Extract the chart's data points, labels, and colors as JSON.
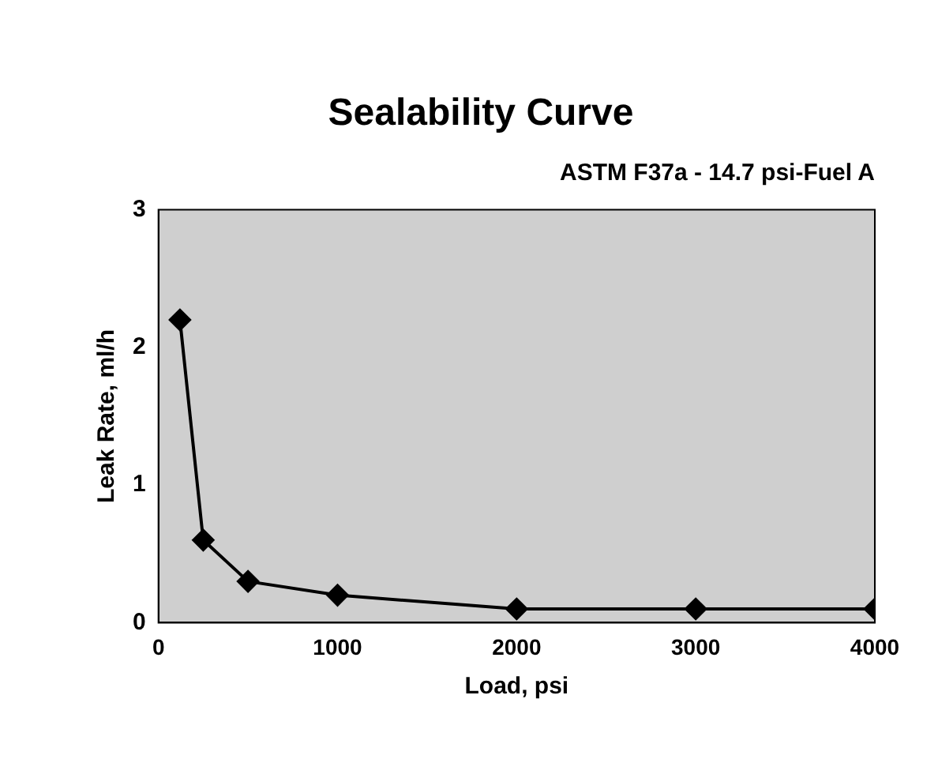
{
  "chart_data": {
    "type": "line",
    "title": "Sealability Curve",
    "subtitle": "ASTM F37a - 14.7 psi-Fuel A",
    "xlabel": "Load, psi",
    "ylabel": "Leak Rate, ml/h",
    "x": [
      120,
      250,
      500,
      1000,
      2000,
      3000,
      4000
    ],
    "series": [
      {
        "color": "#000000",
        "values": [
          2.2,
          0.6,
          0.3,
          0.2,
          0.1,
          0.1,
          0.1
        ]
      }
    ],
    "xlim": [
      0,
      4000
    ],
    "xticks": [
      0,
      1000,
      2000,
      3000,
      4000
    ],
    "ylim": [
      0,
      3
    ],
    "yticks": [
      0,
      1,
      2,
      3
    ],
    "grid": false,
    "legend": false,
    "marker": "diamond",
    "line_style": "solid"
  }
}
